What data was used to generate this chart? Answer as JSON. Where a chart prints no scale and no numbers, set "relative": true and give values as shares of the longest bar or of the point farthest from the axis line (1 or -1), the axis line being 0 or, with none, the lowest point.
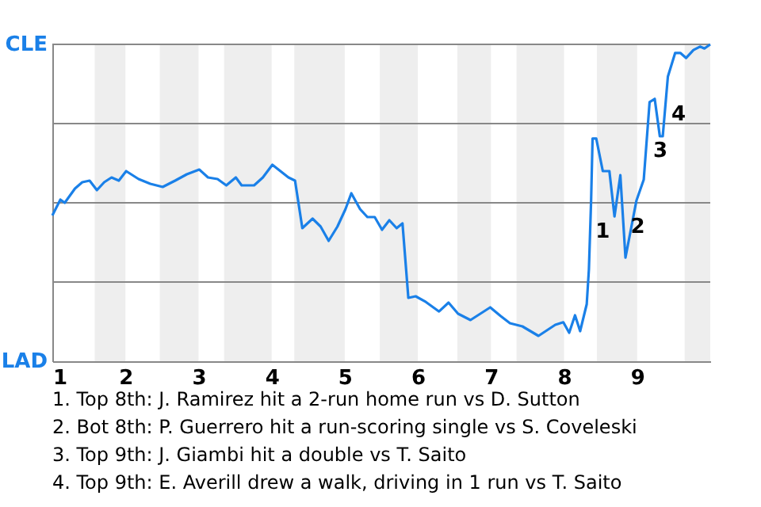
{
  "chart_data": {
    "type": "line",
    "relative": true,
    "x": [
      1,
      1.11,
      1.17,
      1.31,
      1.41,
      1.51,
      1.61,
      1.71,
      1.81,
      1.91,
      2.01,
      2.18,
      2.34,
      2.51,
      2.68,
      2.84,
      3.01,
      3.13,
      3.26,
      3.38,
      3.51,
      3.59,
      3.76,
      3.88,
      4.01,
      4.12,
      4.23,
      4.32,
      4.42,
      4.56,
      4.67,
      4.78,
      4.9,
      5.01,
      5.09,
      5.21,
      5.31,
      5.41,
      5.51,
      5.61,
      5.71,
      5.79,
      5.87,
      5.97,
      6.11,
      6.29,
      6.42,
      6.55,
      6.72,
      6.99,
      7.13,
      7.26,
      7.43,
      7.65,
      7.88,
      7.99,
      8.07,
      8.15,
      8.22,
      8.31,
      8.34,
      8.37,
      8.39,
      8.44,
      8.53,
      8.62,
      8.69,
      8.77,
      8.84,
      8.99,
      9.09,
      9.17,
      9.24,
      9.31,
      9.35,
      9.42,
      9.52,
      9.59,
      9.67,
      9.77,
      9.86,
      9.92,
      10
    ],
    "series": [
      {
        "color": "#1a80e8",
        "values": [
          0.46,
          0.51,
          0.5,
          0.545,
          0.565,
          0.57,
          0.54,
          0.565,
          0.58,
          0.57,
          0.6,
          0.575,
          0.56,
          0.55,
          0.57,
          0.59,
          0.605,
          0.58,
          0.575,
          0.555,
          0.58,
          0.555,
          0.555,
          0.58,
          0.62,
          0.6,
          0.58,
          0.57,
          0.42,
          0.45,
          0.425,
          0.38,
          0.425,
          0.48,
          0.53,
          0.48,
          0.455,
          0.455,
          0.415,
          0.445,
          0.42,
          0.435,
          0.2,
          0.205,
          0.187,
          0.157,
          0.185,
          0.15,
          0.13,
          0.17,
          0.143,
          0.12,
          0.11,
          0.08,
          0.115,
          0.123,
          0.09,
          0.145,
          0.095,
          0.18,
          0.29,
          0.507,
          0.703,
          0.703,
          0.6,
          0.6,
          0.457,
          0.587,
          0.327,
          0.507,
          0.573,
          0.818,
          0.828,
          0.71,
          0.71,
          0.898,
          0.973,
          0.973,
          0.957,
          0.982,
          0.993,
          0.987,
          1
        ]
      }
    ],
    "xlim": [
      1,
      10
    ],
    "xticks": [
      1,
      2,
      3,
      4,
      5,
      6,
      7,
      8,
      9
    ],
    "ref_lines": [
      {
        "axis": "y",
        "value": 0.25,
        "color": "#888888"
      },
      {
        "axis": "y",
        "value": 0.5,
        "color": "#888888"
      },
      {
        "axis": "y",
        "value": 0.75,
        "color": "#888888"
      },
      {
        "axis": "y",
        "value": 1,
        "color": "#888888"
      }
    ],
    "bands": [
      {
        "axis": "x",
        "from": 1.58,
        "to": 2,
        "color": "#eeeeee"
      },
      {
        "axis": "x",
        "from": 2.47,
        "to": 3,
        "color": "#eeeeee"
      },
      {
        "axis": "x",
        "from": 3.35,
        "to": 4,
        "color": "#eeeeee"
      },
      {
        "axis": "x",
        "from": 4.31,
        "to": 5,
        "color": "#eeeeee"
      },
      {
        "axis": "x",
        "from": 5.48,
        "to": 6,
        "color": "#eeeeee"
      },
      {
        "axis": "x",
        "from": 6.54,
        "to": 7,
        "color": "#eeeeee"
      },
      {
        "axis": "x",
        "from": 7.35,
        "to": 8,
        "color": "#eeeeee"
      },
      {
        "axis": "x",
        "from": 8.45,
        "to": 9,
        "color": "#eeeeee"
      },
      {
        "axis": "x",
        "from": 9.65,
        "to": 10,
        "color": "#eeeeee"
      }
    ],
    "annotations": [
      "CLE",
      "LAD",
      {
        "text": "1",
        "x": 8.43,
        "y": 0.41
      },
      {
        "text": "2",
        "x": 8.91,
        "y": 0.425
      },
      {
        "text": "3",
        "x": 9.22,
        "y": 0.665
      },
      {
        "text": "4",
        "x": 9.47,
        "y": 0.78
      },
      "1. Top 8th: J. Ramirez hit a 2-run home run vs D. Sutton",
      "2. Bot 8th: P. Guerrero hit a run-scoring single vs S. Coveleski",
      "3. Top 9th: J. Giambi hit a double vs T. Saito",
      "4. Top 9th: E. Averill drew a walk, driving in 1 run vs T. Saito"
    ],
    "marker": "none",
    "line_style": "solid"
  }
}
